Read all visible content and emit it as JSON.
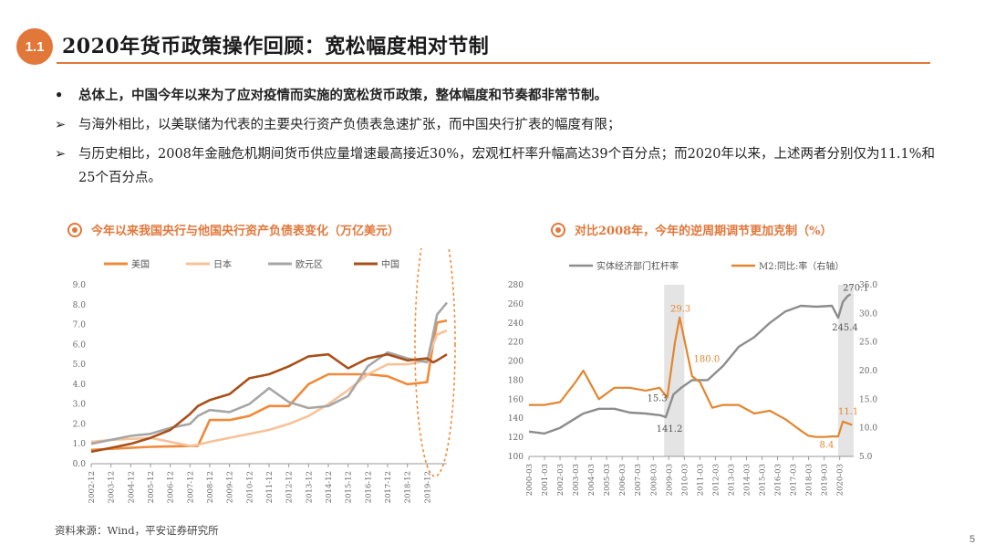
{
  "header": {
    "section_no": "1.1",
    "title": "2020年货币政策操作回顾：宽松幅度相对节制"
  },
  "bullets": [
    {
      "marker": "•",
      "text": "总体上，中国今年以来为了应对疫情而实施的宽松货币政策，整体幅度和节奏都非常节制。"
    },
    {
      "marker": "➢",
      "text": "与海外相比，以美联储为代表的主要央行资产负债表急速扩张，而中国央行扩表的幅度有限；"
    },
    {
      "marker": "➢",
      "text": "与历史相比，2008年金融危机期间货币供应量增速最高接近30%，宏观杠杆率升幅高达39个百分点；而2020年以来，上述两者分别仅为11.1%和25个百分点。"
    }
  ],
  "chart1_title": "今年以来我国央行与他国央行资产负债表变化（万亿美元）",
  "chart2_title": "对比2008年，今年的逆周期调节更加克制（%）",
  "source": "资料来源：Wind，平安证券研究所",
  "page_number": "5",
  "colors": {
    "accent": "#e2773a",
    "us": "#f08a3a",
    "japan": "#f6c29a",
    "euro": "#a6a6a6",
    "china": "#a8501a",
    "leverage": "#8c8c8c",
    "m2": "#e2862f"
  },
  "chart_data": [
    {
      "type": "line",
      "legend": [
        "美国",
        "日本",
        "欧元区",
        "中国"
      ],
      "x_ticks": [
        "2002-12",
        "2003-12",
        "2004-12",
        "2005-12",
        "2006-12",
        "2007-12",
        "2008-12",
        "2009-12",
        "2010-12",
        "2011-12",
        "2012-12",
        "2013-12",
        "2014-12",
        "2015-12",
        "2016-12",
        "2017-12",
        "2018-12",
        "2019-12"
      ],
      "ylim": [
        0,
        9
      ],
      "y_ticks": [
        "0.0",
        "1.0",
        "2.0",
        "3.0",
        "4.0",
        "5.0",
        "6.0",
        "7.0",
        "8.0",
        "9.0"
      ],
      "x": [
        2002.9,
        2003.9,
        2004.9,
        2005.9,
        2006.9,
        2007.9,
        2008.3,
        2008.9,
        2009.9,
        2010.9,
        2011.9,
        2012.9,
        2013.9,
        2014.9,
        2015.9,
        2016.9,
        2017.9,
        2018.9,
        2019.9,
        2020.2,
        2020.4,
        2020.9
      ],
      "series": [
        {
          "name": "美国",
          "values": [
            0.7,
            0.75,
            0.8,
            0.85,
            0.87,
            0.89,
            0.9,
            2.2,
            2.2,
            2.4,
            2.9,
            2.9,
            4.0,
            4.5,
            4.5,
            4.5,
            4.4,
            4.0,
            4.1,
            6.0,
            7.1,
            7.2
          ]
        },
        {
          "name": "日本",
          "values": [
            1.1,
            1.2,
            1.25,
            1.3,
            1.1,
            0.9,
            0.95,
            1.1,
            1.3,
            1.5,
            1.7,
            2.0,
            2.4,
            3.0,
            3.7,
            4.5,
            5.0,
            5.0,
            5.2,
            6.0,
            6.5,
            6.7
          ]
        },
        {
          "name": "欧元区",
          "values": [
            1.0,
            1.2,
            1.4,
            1.5,
            1.8,
            2.0,
            2.4,
            2.7,
            2.6,
            3.0,
            3.8,
            3.1,
            2.8,
            2.9,
            3.4,
            4.9,
            5.6,
            5.3,
            5.1,
            6.5,
            7.5,
            8.1
          ]
        },
        {
          "name": "中国",
          "values": [
            0.6,
            0.8,
            1.0,
            1.3,
            1.7,
            2.5,
            2.9,
            3.2,
            3.5,
            4.3,
            4.5,
            4.9,
            5.4,
            5.5,
            4.8,
            5.3,
            5.5,
            5.2,
            5.3,
            5.1,
            5.2,
            5.5
          ]
        }
      ]
    },
    {
      "type": "line",
      "legend": [
        "实体经济部门杠杆率",
        "M2:同比:率（右轴）"
      ],
      "x_ticks": [
        "2000-03",
        "2001-03",
        "2002-03",
        "2003-03",
        "2004-03",
        "2005-03",
        "2006-03",
        "2007-03",
        "2008-03",
        "2009-03",
        "2010-03",
        "2011-03",
        "2012-03",
        "2013-03",
        "2014-03",
        "2015-03",
        "2016-03",
        "2017-03",
        "2018-03",
        "2019-03",
        "2020-03"
      ],
      "ylim_left": [
        100,
        280
      ],
      "y_ticks_left": [
        "100",
        "120",
        "140",
        "160",
        "180",
        "200",
        "220",
        "240",
        "260",
        "280"
      ],
      "ylim_right": [
        5,
        35
      ],
      "y_ticks_right": [
        "5.0",
        "10.0",
        "15.0",
        "20.0",
        "25.0",
        "30.0",
        "35.0"
      ],
      "highlight_periods": [
        [
          2008.7,
          2010.0
        ],
        [
          2019.9,
          2020.9
        ]
      ],
      "series": [
        {
          "name": "实体经济部门杠杆率",
          "x": [
            2000.0,
            2001.0,
            2002.0,
            2003.0,
            2003.5,
            2004.5,
            2005.5,
            2006.5,
            2007.5,
            2008.5,
            2008.8,
            2009.3,
            2009.8,
            2010.5,
            2011.5,
            2012.5,
            2013.5,
            2014.5,
            2015.5,
            2016.5,
            2017.5,
            2018.5,
            2019.5,
            2019.9,
            2020.2,
            2020.5,
            2020.7
          ],
          "values": [
            126,
            124,
            130,
            140,
            145,
            150,
            150,
            146,
            145,
            143,
            141.2,
            165,
            172,
            180,
            180,
            195,
            215,
            225,
            240,
            252,
            258,
            257,
            258,
            245.4,
            262,
            268,
            270.1
          ]
        },
        {
          "name": "M2:同比:率（右轴）",
          "x": [
            2000.0,
            2001.0,
            2002.0,
            2003.0,
            2003.5,
            2004.5,
            2005.5,
            2006.5,
            2007.5,
            2008.4,
            2008.9,
            2009.4,
            2009.7,
            2010.5,
            2011.0,
            2011.8,
            2012.5,
            2013.5,
            2014.5,
            2015.5,
            2016.5,
            2017.5,
            2018.0,
            2018.5,
            2019.0,
            2019.5,
            2019.9,
            2020.2,
            2020.5,
            2020.8
          ],
          "values": [
            14,
            14,
            14.5,
            18,
            20,
            15,
            17,
            17,
            16.5,
            17,
            15.3,
            25,
            29.3,
            19,
            18.0,
            13.5,
            14,
            14,
            12.5,
            13,
            11.5,
            9.5,
            8.6,
            8.4,
            8.4,
            8.5,
            8.5,
            11.1,
            10.8,
            10.5
          ]
        }
      ],
      "annotations": [
        "29.3",
        "180.0",
        "15.3",
        "141.2",
        "270.1",
        "245.4",
        "11.1",
        "8.4"
      ]
    }
  ]
}
